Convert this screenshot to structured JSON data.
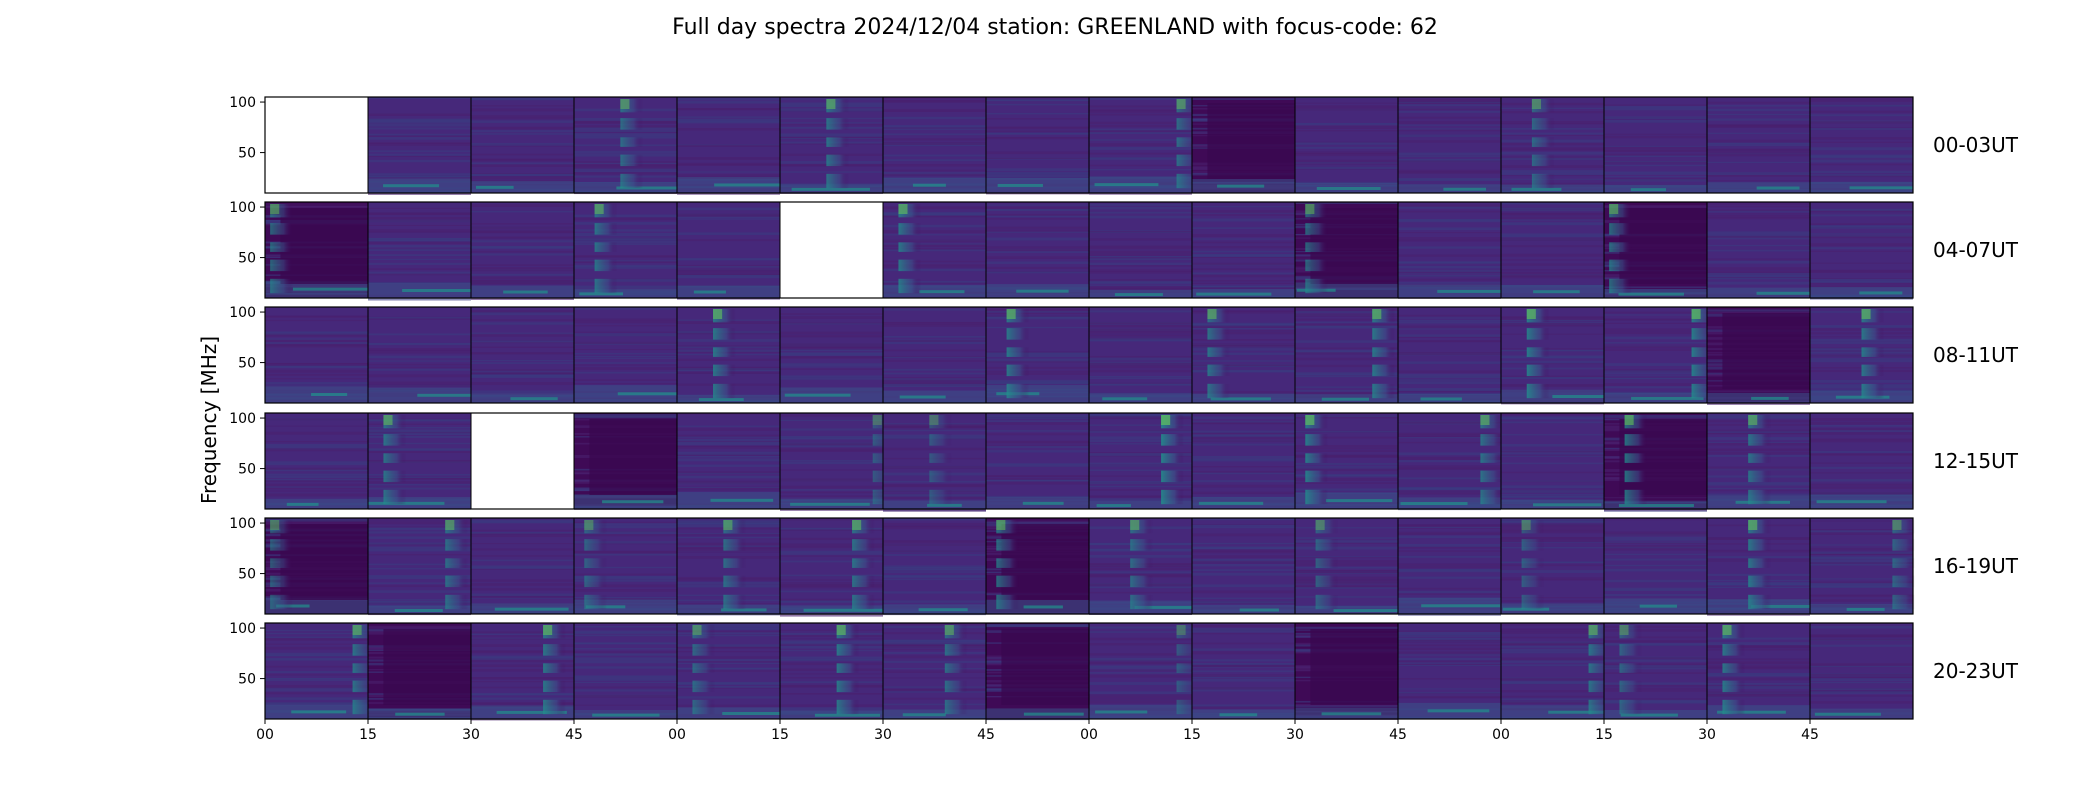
{
  "chart_data": {
    "type": "heatmap",
    "title": "Full day spectra 2024/12/04 station: GREENLAND with focus-code: 62",
    "ylabel": "Frequency [MHz]",
    "xlabel": "",
    "ylim": [
      10,
      105
    ],
    "y_ticks": [
      50,
      100
    ],
    "x_ticks": [
      {
        "label": "00",
        "col": 0
      },
      {
        "label": "15",
        "col": 1
      },
      {
        "label": "30",
        "col": 2
      },
      {
        "label": "45",
        "col": 3
      },
      {
        "label": "00",
        "col": 4
      },
      {
        "label": "15",
        "col": 5
      },
      {
        "label": "30",
        "col": 6
      },
      {
        "label": "45",
        "col": 7
      },
      {
        "label": "00",
        "col": 8
      },
      {
        "label": "15",
        "col": 9
      },
      {
        "label": "30",
        "col": 10
      },
      {
        "label": "45",
        "col": 11
      },
      {
        "label": "00",
        "col": 12
      },
      {
        "label": "15",
        "col": 13
      },
      {
        "label": "30",
        "col": 14
      },
      {
        "label": "45",
        "col": 15
      }
    ],
    "columns_per_row": 16,
    "grid": false,
    "colormap": [
      "#440154",
      "#3b528b",
      "#21918c",
      "#5ec962",
      "#fde725"
    ],
    "missing_color": "#ffffff",
    "rows": [
      {
        "label": "00-03UT",
        "missing": [
          0
        ],
        "bursts": [
          [
            3,
            0.45,
            0.7
          ],
          [
            5,
            0.45,
            0.75
          ],
          [
            8,
            0.85,
            0.7
          ],
          [
            12,
            0.3,
            0.65
          ]
        ],
        "quiet": [
          9
        ]
      },
      {
        "label": "04-07UT",
        "missing": [
          5
        ],
        "bursts": [
          [
            0,
            0.05,
            0.7
          ],
          [
            3,
            0.2,
            0.75
          ],
          [
            6,
            0.15,
            0.8
          ],
          [
            10,
            0.1,
            0.7
          ],
          [
            13,
            0.05,
            0.75
          ]
        ],
        "quiet": [
          0,
          10,
          13
        ]
      },
      {
        "label": "08-11UT",
        "missing": [],
        "bursts": [
          [
            4,
            0.35,
            0.8
          ],
          [
            7,
            0.2,
            0.8
          ],
          [
            9,
            0.15,
            0.75
          ],
          [
            10,
            0.75,
            0.8
          ],
          [
            12,
            0.25,
            0.85
          ],
          [
            13,
            0.85,
            0.85
          ],
          [
            15,
            0.5,
            0.8
          ]
        ],
        "quiet": [
          14
        ]
      },
      {
        "label": "12-15UT",
        "missing": [
          2
        ],
        "bursts": [
          [
            1,
            0.15,
            0.75
          ],
          [
            5,
            0.9,
            0.5
          ],
          [
            6,
            0.45,
            0.5
          ],
          [
            8,
            0.7,
            0.9
          ],
          [
            10,
            0.1,
            0.85
          ],
          [
            11,
            0.8,
            0.75
          ],
          [
            13,
            0.2,
            0.8
          ],
          [
            14,
            0.4,
            0.75
          ]
        ],
        "quiet": [
          3,
          13
        ]
      },
      {
        "label": "16-19UT",
        "missing": [],
        "bursts": [
          [
            0,
            0.05,
            0.6
          ],
          [
            1,
            0.75,
            0.7
          ],
          [
            3,
            0.1,
            0.6
          ],
          [
            4,
            0.45,
            0.7
          ],
          [
            5,
            0.7,
            0.75
          ],
          [
            7,
            0.1,
            0.75
          ],
          [
            8,
            0.4,
            0.7
          ],
          [
            10,
            0.2,
            0.6
          ],
          [
            12,
            0.2,
            0.55
          ],
          [
            14,
            0.4,
            0.8
          ],
          [
            15,
            0.8,
            0.6
          ]
        ],
        "quiet": [
          0,
          7
        ]
      },
      {
        "label": "20-23UT",
        "missing": [],
        "bursts": [
          [
            0,
            0.85,
            0.75
          ],
          [
            2,
            0.7,
            0.8
          ],
          [
            4,
            0.15,
            0.65
          ],
          [
            5,
            0.55,
            0.8
          ],
          [
            6,
            0.6,
            0.7
          ],
          [
            8,
            0.85,
            0.5
          ],
          [
            12,
            0.85,
            0.75
          ],
          [
            13,
            0.15,
            0.6
          ],
          [
            14,
            0.15,
            0.8
          ]
        ],
        "quiet": [
          1,
          7,
          10
        ]
      }
    ]
  }
}
